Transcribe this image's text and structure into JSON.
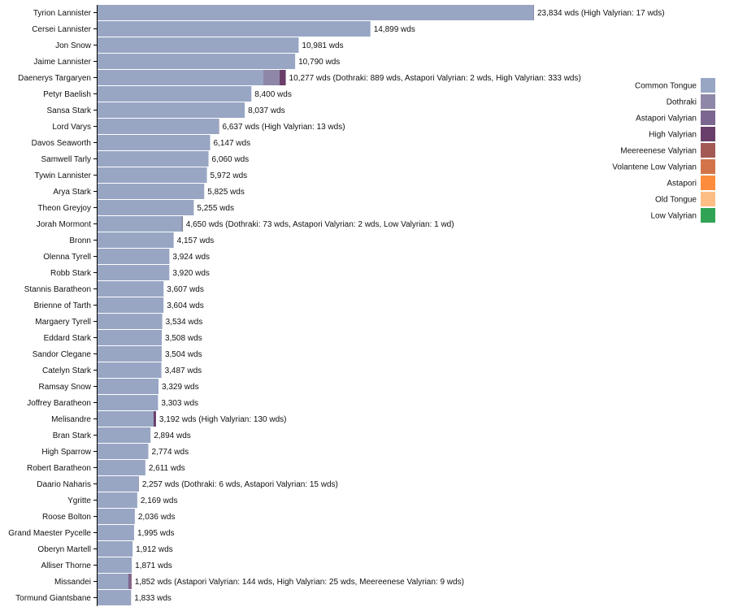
{
  "chart_data": {
    "type": "bar",
    "orientation": "horizontal",
    "stacked": true,
    "value_suffix": "wds",
    "characters": [
      {
        "name": "Tyrion Lannister",
        "total_label": "23,834",
        "extra_label": "(High Valyrian: 17 wds)",
        "segments": {
          "Common Tongue": 23817,
          "High Valyrian": 17
        }
      },
      {
        "name": "Cersei Lannister",
        "total_label": "14,899",
        "extra_label": "",
        "segments": {
          "Common Tongue": 14899
        }
      },
      {
        "name": "Jon Snow",
        "total_label": "10,981",
        "extra_label": "",
        "segments": {
          "Common Tongue": 10981
        }
      },
      {
        "name": "Jaime Lannister",
        "total_label": "10,790",
        "extra_label": "",
        "segments": {
          "Common Tongue": 10790
        }
      },
      {
        "name": "Daenerys Targaryen",
        "total_label": "10,277",
        "extra_label": "(Dothraki: 889 wds, Astapori Valyrian: 2 wds, High Valyrian: 333 wds)",
        "segments": {
          "Common Tongue": 9053,
          "Dothraki": 889,
          "Astapori Valyrian": 2,
          "High Valyrian": 333
        }
      },
      {
        "name": "Petyr Baelish",
        "total_label": "8,400",
        "extra_label": "",
        "segments": {
          "Common Tongue": 8400
        }
      },
      {
        "name": "Sansa Stark",
        "total_label": "8,037",
        "extra_label": "",
        "segments": {
          "Common Tongue": 8037
        }
      },
      {
        "name": "Lord Varys",
        "total_label": "6,637",
        "extra_label": "(High Valyrian: 13 wds)",
        "segments": {
          "Common Tongue": 6624,
          "High Valyrian": 13
        }
      },
      {
        "name": "Davos Seaworth",
        "total_label": "6,147",
        "extra_label": "",
        "segments": {
          "Common Tongue": 6147
        }
      },
      {
        "name": "Samwell Tarly",
        "total_label": "6,060",
        "extra_label": "",
        "segments": {
          "Common Tongue": 6060
        }
      },
      {
        "name": "Tywin Lannister",
        "total_label": "5,972",
        "extra_label": "",
        "segments": {
          "Common Tongue": 5972
        }
      },
      {
        "name": "Arya Stark",
        "total_label": "5,825",
        "extra_label": "",
        "segments": {
          "Common Tongue": 5825
        }
      },
      {
        "name": "Theon Greyjoy",
        "total_label": "5,255",
        "extra_label": "",
        "segments": {
          "Common Tongue": 5255
        }
      },
      {
        "name": "Jorah Mormont",
        "total_label": "4,650",
        "extra_label": "(Dothraki: 73 wds, Astapori Valyrian: 2 wds, Low Valyrian: 1 wd)",
        "segments": {
          "Common Tongue": 4574,
          "Dothraki": 73,
          "Astapori Valyrian": 2,
          "Low Valyrian": 1
        }
      },
      {
        "name": "Bronn",
        "total_label": "4,157",
        "extra_label": "",
        "segments": {
          "Common Tongue": 4157
        }
      },
      {
        "name": "Olenna Tyrell",
        "total_label": "3,924",
        "extra_label": "",
        "segments": {
          "Common Tongue": 3924
        }
      },
      {
        "name": "Robb Stark",
        "total_label": "3,920",
        "extra_label": "",
        "segments": {
          "Common Tongue": 3920
        }
      },
      {
        "name": "Stannis Baratheon",
        "total_label": "3,607",
        "extra_label": "",
        "segments": {
          "Common Tongue": 3607
        }
      },
      {
        "name": "Brienne of Tarth",
        "total_label": "3,604",
        "extra_label": "",
        "segments": {
          "Common Tongue": 3604
        }
      },
      {
        "name": "Margaery Tyrell",
        "total_label": "3,534",
        "extra_label": "",
        "segments": {
          "Common Tongue": 3534
        }
      },
      {
        "name": "Eddard Stark",
        "total_label": "3,508",
        "extra_label": "",
        "segments": {
          "Common Tongue": 3508
        }
      },
      {
        "name": "Sandor Clegane",
        "total_label": "3,504",
        "extra_label": "",
        "segments": {
          "Common Tongue": 3504
        }
      },
      {
        "name": "Catelyn Stark",
        "total_label": "3,487",
        "extra_label": "",
        "segments": {
          "Common Tongue": 3487
        }
      },
      {
        "name": "Ramsay Snow",
        "total_label": "3,329",
        "extra_label": "",
        "segments": {
          "Common Tongue": 3329
        }
      },
      {
        "name": "Joffrey Baratheon",
        "total_label": "3,303",
        "extra_label": "",
        "segments": {
          "Common Tongue": 3303
        }
      },
      {
        "name": "Melisandre",
        "total_label": "3,192",
        "extra_label": "(High Valyrian: 130 wds)",
        "segments": {
          "Common Tongue": 3062,
          "High Valyrian": 130
        }
      },
      {
        "name": "Bran Stark",
        "total_label": "2,894",
        "extra_label": "",
        "segments": {
          "Common Tongue": 2894
        }
      },
      {
        "name": "High Sparrow",
        "total_label": "2,774",
        "extra_label": "",
        "segments": {
          "Common Tongue": 2774
        }
      },
      {
        "name": "Robert Baratheon",
        "total_label": "2,611",
        "extra_label": "",
        "segments": {
          "Common Tongue": 2611
        }
      },
      {
        "name": "Daario Naharis",
        "total_label": "2,257",
        "extra_label": "(Dothraki: 6 wds, Astapori Valyrian: 15 wds)",
        "segments": {
          "Common Tongue": 2236,
          "Dothraki": 6,
          "Astapori Valyrian": 15
        }
      },
      {
        "name": "Ygritte",
        "total_label": "2,169",
        "extra_label": "",
        "segments": {
          "Common Tongue": 2169
        }
      },
      {
        "name": "Roose Bolton",
        "total_label": "2,036",
        "extra_label": "",
        "segments": {
          "Common Tongue": 2036
        }
      },
      {
        "name": "Grand Maester Pycelle",
        "total_label": "1,995",
        "extra_label": "",
        "segments": {
          "Common Tongue": 1995
        }
      },
      {
        "name": "Oberyn Martell",
        "total_label": "1,912",
        "extra_label": "",
        "segments": {
          "Common Tongue": 1912
        }
      },
      {
        "name": "Alliser Thorne",
        "total_label": "1,871",
        "extra_label": "",
        "segments": {
          "Common Tongue": 1871
        }
      },
      {
        "name": "Missandei",
        "total_label": "1,852",
        "extra_label": "(Astapori Valyrian: 144 wds, High Valyrian: 25 wds, Meereenese Valyrian: 9 wds)",
        "segments": {
          "Common Tongue": 1674,
          "Astapori Valyrian": 144,
          "High Valyrian": 25,
          "Meereenese Valyrian": 9
        }
      },
      {
        "name": "Tormund Giantsbane",
        "total_label": "1,833",
        "extra_label": "",
        "segments": {
          "Common Tongue": 1833
        }
      }
    ],
    "languages": [
      {
        "name": "Common Tongue",
        "color": "#98a6c4"
      },
      {
        "name": "Dothraki",
        "color": "#8f87a8"
      },
      {
        "name": "Astapori Valyrian",
        "color": "#7a6690"
      },
      {
        "name": "High Valyrian",
        "color": "#6a3e6a"
      },
      {
        "name": "Meereenese Valyrian",
        "color": "#a35a55"
      },
      {
        "name": "Volantene Low Valyrian",
        "color": "#d27449"
      },
      {
        "name": "Astapori",
        "color": "#fd8d3c"
      },
      {
        "name": "Old Tongue",
        "color": "#fdbe85"
      },
      {
        "name": "Low Valyrian",
        "color": "#31a354"
      }
    ],
    "legend_position": "right",
    "xlim": [
      0,
      23834
    ]
  }
}
